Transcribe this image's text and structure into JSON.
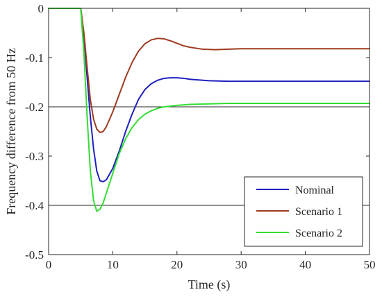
{
  "chart_data": {
    "type": "line",
    "xlabel": "Time (s)",
    "ylabel": "Frequency difference from 50 Hz",
    "xlim": [
      0,
      50
    ],
    "ylim": [
      -0.5,
      0
    ],
    "xticks": [
      0,
      10,
      20,
      30,
      40,
      50
    ],
    "yticks": [
      0,
      -0.1,
      -0.2,
      -0.3,
      -0.4,
      -0.5
    ],
    "xtick_labels": [
      "0",
      "10",
      "20",
      "30",
      "40",
      "50"
    ],
    "ytick_labels": [
      "0",
      "-0.1",
      "-0.2",
      "-0.3",
      "-0.4",
      "-0.5"
    ],
    "reference_lines_y": [
      -0.2,
      -0.4
    ],
    "grid": false,
    "legend_position": "bottom-right",
    "series": [
      {
        "name": "Nominal",
        "color": "#1f1fbf",
        "x": [
          0,
          5,
          5.5,
          6,
          6.5,
          7,
          7.5,
          8,
          8.5,
          9,
          10,
          11,
          12,
          13,
          14,
          15,
          16,
          17,
          18,
          19,
          20,
          21,
          22,
          23,
          25,
          28,
          30,
          35,
          40,
          45,
          50
        ],
        "y": [
          0,
          0,
          -0.055,
          -0.14,
          -0.22,
          -0.285,
          -0.33,
          -0.35,
          -0.352,
          -0.348,
          -0.325,
          -0.29,
          -0.25,
          -0.215,
          -0.185,
          -0.165,
          -0.153,
          -0.146,
          -0.142,
          -0.141,
          -0.141,
          -0.142,
          -0.144,
          -0.145,
          -0.147,
          -0.148,
          -0.148,
          -0.148,
          -0.148,
          -0.148,
          -0.148
        ]
      },
      {
        "name": "Scenario 1",
        "color": "#9e3a1f",
        "x": [
          0,
          5,
          5.5,
          6,
          6.5,
          7,
          7.5,
          8,
          8.5,
          9,
          10,
          11,
          12,
          13,
          14,
          15,
          16,
          17,
          18,
          19,
          20,
          21,
          22,
          24,
          26,
          28,
          30,
          35,
          40,
          45,
          50
        ],
        "y": [
          0,
          0,
          -0.05,
          -0.12,
          -0.185,
          -0.225,
          -0.245,
          -0.252,
          -0.25,
          -0.24,
          -0.21,
          -0.175,
          -0.14,
          -0.11,
          -0.087,
          -0.072,
          -0.064,
          -0.061,
          -0.062,
          -0.066,
          -0.071,
          -0.076,
          -0.079,
          -0.083,
          -0.084,
          -0.083,
          -0.082,
          -0.082,
          -0.082,
          -0.082,
          -0.082
        ]
      },
      {
        "name": "Scenario 2",
        "color": "#33dd33",
        "x": [
          0,
          5,
          5.5,
          6,
          6.5,
          7,
          7.5,
          8,
          8.5,
          9,
          10,
          11,
          12,
          13,
          14,
          15,
          16,
          17,
          18,
          20,
          22,
          25,
          28,
          30,
          35,
          40,
          45,
          50
        ],
        "y": [
          0,
          0,
          -0.09,
          -0.22,
          -0.33,
          -0.39,
          -0.412,
          -0.408,
          -0.395,
          -0.375,
          -0.335,
          -0.295,
          -0.265,
          -0.242,
          -0.226,
          -0.215,
          -0.208,
          -0.203,
          -0.2,
          -0.197,
          -0.195,
          -0.194,
          -0.193,
          -0.193,
          -0.193,
          -0.193,
          -0.193,
          -0.193
        ]
      }
    ]
  }
}
